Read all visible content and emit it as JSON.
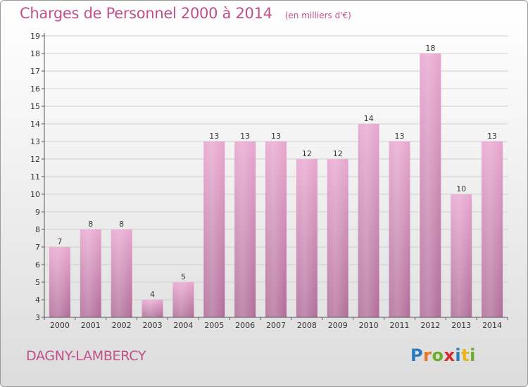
{
  "header": {
    "title": "Charges de Personnel 2000 à 2014",
    "unit": "(en milliers d'€)"
  },
  "footer": {
    "commune": "DAGNY-LAMBERCY",
    "logo_letters": [
      {
        "ch": "P",
        "color": "#2b7bc0"
      },
      {
        "ch": "r",
        "color": "#e8741c"
      },
      {
        "ch": "o",
        "color": "#6aae2c"
      },
      {
        "ch": "x",
        "color": "#d8282c"
      },
      {
        "ch": "i",
        "color": "#2b7bc0"
      },
      {
        "ch": "t",
        "color": "#e8b418"
      },
      {
        "ch": "i",
        "color": "#6aae2c"
      }
    ]
  },
  "colors": {
    "bar_top": "#e8a6cf",
    "bar_bottom": "#b06c98",
    "text_accent": "#c0508a",
    "label": "#333333"
  },
  "chart_data": {
    "type": "bar",
    "title": "Charges de Personnel 2000 à 2014",
    "ylabel": "",
    "xlabel": "",
    "categories": [
      "2000",
      "2001",
      "2002",
      "2003",
      "2004",
      "2005",
      "2006",
      "2007",
      "2008",
      "2009",
      "2010",
      "2011",
      "2012",
      "2013",
      "2014"
    ],
    "values": [
      7,
      8,
      8,
      4,
      5,
      13,
      13,
      13,
      12,
      12,
      14,
      13,
      18,
      10,
      13
    ],
    "ylim": [
      3,
      19
    ],
    "yticks": [
      3,
      4,
      5,
      6,
      7,
      8,
      9,
      10,
      11,
      12,
      13,
      14,
      15,
      16,
      17,
      18,
      19
    ],
    "grid": true
  }
}
